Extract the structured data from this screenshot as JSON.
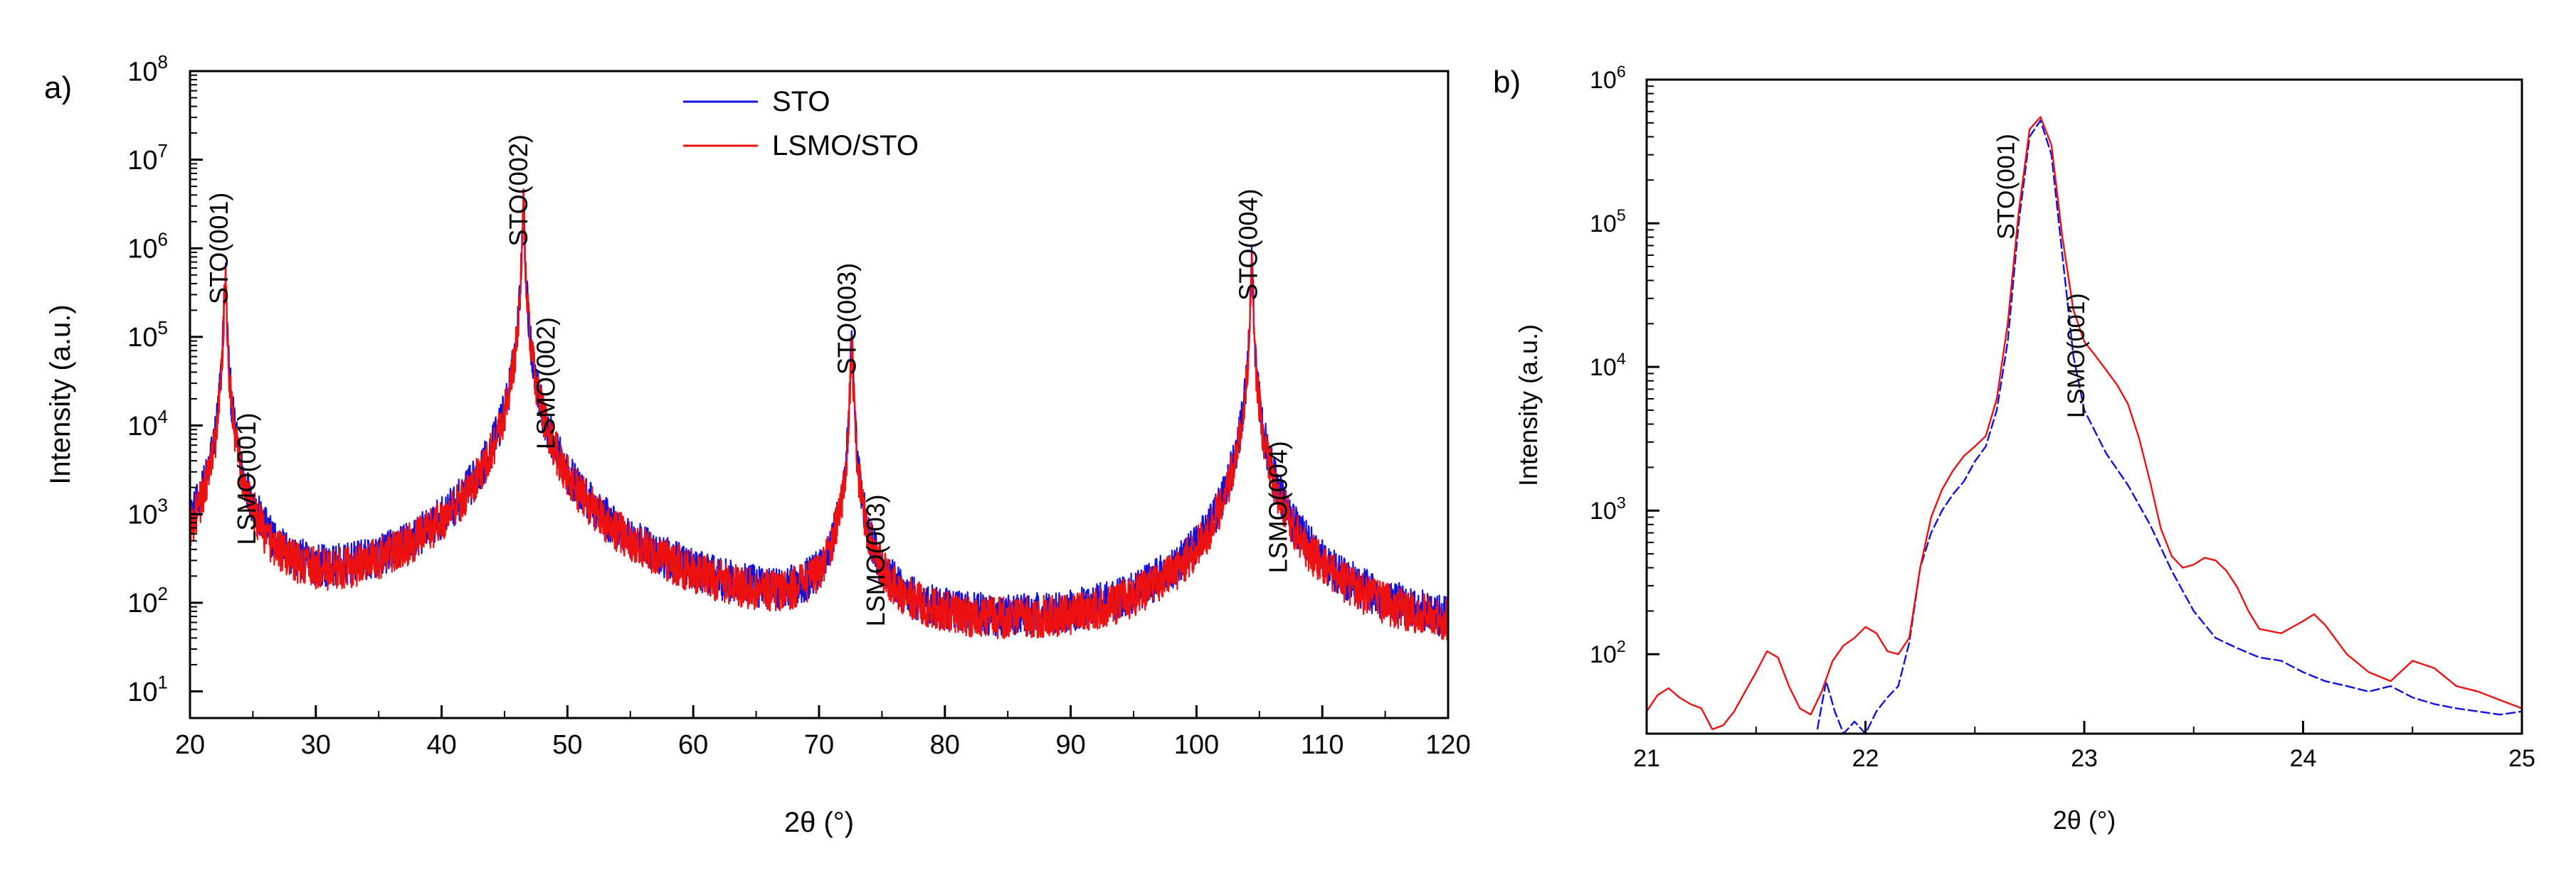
{
  "chart_data": [
    {
      "type": "line",
      "panel_label": "a)",
      "title": "",
      "xlabel": "2θ (°)",
      "ylabel": "Intensity (a.u.)",
      "xlim": [
        20,
        120
      ],
      "ylim": [
        5,
        100000000
      ],
      "yscale": "log",
      "grid": false,
      "legend_position": "top-center",
      "x_ticks": [
        20,
        30,
        40,
        50,
        60,
        70,
        80,
        90,
        100,
        110,
        120
      ],
      "x_tick_labels": [
        "20",
        "30",
        "40",
        "50",
        "60",
        "70",
        "80",
        "90",
        "100",
        "110",
        "120"
      ],
      "y_ticks": [
        10,
        100,
        1000,
        10000,
        100000,
        1000000,
        10000000,
        100000000
      ],
      "y_tick_labels": [
        {
          "base": "10",
          "exp": "1"
        },
        {
          "base": "10",
          "exp": "2"
        },
        {
          "base": "10",
          "exp": "3"
        },
        {
          "base": "10",
          "exp": "4"
        },
        {
          "base": "10",
          "exp": "5"
        },
        {
          "base": "10",
          "exp": "6"
        },
        {
          "base": "10",
          "exp": "7"
        },
        {
          "base": "10",
          "exp": "8"
        }
      ],
      "baseline": 16,
      "peaks": [
        {
          "center": 22.8,
          "sto_height": 500000,
          "lsmo_height": 420000
        },
        {
          "center": 46.5,
          "sto_height": 3000000,
          "lsmo_height": 2800000
        },
        {
          "center": 72.6,
          "sto_height": 90000,
          "lsmo_height": 85000
        },
        {
          "center": 104.4,
          "sto_height": 700000,
          "lsmo_height": 600000
        }
      ],
      "series": [
        {
          "name": "STO",
          "color": "#1010e0"
        },
        {
          "name": "LSMO/STO",
          "color": "#ee1111"
        }
      ],
      "annotations": [
        {
          "text": "STO(001)",
          "x": 23.0,
          "y": 1000000
        },
        {
          "text": "LSMO(001)",
          "x": 25.2,
          "y": 2500
        },
        {
          "text": "STO(002)",
          "x": 46.8,
          "y": 4500000
        },
        {
          "text": "LSMO(002)",
          "x": 49.0,
          "y": 30000
        },
        {
          "text": "STO(003)",
          "x": 72.9,
          "y": 160000
        },
        {
          "text": "LSMO(003)",
          "x": 75.2,
          "y": 300
        },
        {
          "text": "STO(004)",
          "x": 104.8,
          "y": 1100000
        },
        {
          "text": "LSMO(004)",
          "x": 107.2,
          "y": 1200
        }
      ]
    },
    {
      "type": "line",
      "panel_label": "b)",
      "title": "",
      "xlabel": "2θ (°)",
      "ylabel": "Intensity (a.u.)",
      "xlim": [
        21,
        25
      ],
      "ylim": [
        28,
        1000000
      ],
      "yscale": "log",
      "grid": false,
      "x_ticks": [
        21,
        22,
        23,
        24,
        25
      ],
      "x_tick_labels": [
        "21",
        "22",
        "23",
        "24",
        "25"
      ],
      "y_ticks": [
        100,
        1000,
        10000,
        100000,
        1000000
      ],
      "y_tick_labels": [
        {
          "base": "10",
          "exp": "2"
        },
        {
          "base": "10",
          "exp": "3"
        },
        {
          "base": "10",
          "exp": "4"
        },
        {
          "base": "10",
          "exp": "5"
        },
        {
          "base": "10",
          "exp": "6"
        }
      ],
      "series": [
        {
          "name": "STO",
          "color": "#1010e0",
          "x": [
            21.78,
            21.82,
            21.86,
            21.9,
            21.95,
            22.0,
            22.05,
            22.1,
            22.15,
            22.2,
            22.25,
            22.3,
            22.35,
            22.4,
            22.45,
            22.5,
            22.55,
            22.6,
            22.65,
            22.7,
            22.75,
            22.8,
            22.85,
            22.9,
            22.95,
            23.0,
            23.1,
            23.2,
            23.3,
            23.4,
            23.5,
            23.6,
            23.7,
            23.8,
            23.9,
            24.0,
            24.1,
            24.2,
            24.3,
            24.4,
            24.5,
            24.6,
            24.7,
            24.8,
            24.9,
            25.0
          ],
          "y": [
            30,
            65,
            40,
            28,
            34,
            26,
            40,
            50,
            60,
            120,
            400,
            700,
            1000,
            1300,
            1600,
            2200,
            2800,
            5000,
            15000,
            100000,
            400000,
            520000,
            300000,
            60000,
            12000,
            5000,
            2500,
            1500,
            800,
            380,
            200,
            130,
            110,
            95,
            90,
            75,
            65,
            60,
            55,
            60,
            50,
            45,
            42,
            40,
            38,
            40
          ]
        },
        {
          "name": "LSMO/STO",
          "color": "#ee1111",
          "x": [
            21.0,
            21.05,
            21.1,
            21.15,
            21.2,
            21.25,
            21.3,
            21.35,
            21.4,
            21.45,
            21.5,
            21.55,
            21.6,
            21.65,
            21.7,
            21.75,
            21.8,
            21.85,
            21.9,
            21.95,
            22.0,
            22.05,
            22.1,
            22.15,
            22.2,
            22.25,
            22.3,
            22.35,
            22.4,
            22.45,
            22.5,
            22.55,
            22.6,
            22.65,
            22.7,
            22.75,
            22.8,
            22.85,
            22.9,
            22.95,
            23.0,
            23.05,
            23.1,
            23.15,
            23.2,
            23.25,
            23.3,
            23.35,
            23.4,
            23.45,
            23.5,
            23.55,
            23.6,
            23.65,
            23.7,
            23.75,
            23.8,
            23.9,
            24.0,
            24.05,
            24.1,
            24.2,
            24.3,
            24.4,
            24.5,
            24.6,
            24.7,
            24.8,
            24.9,
            25.0
          ],
          "y": [
            40,
            52,
            58,
            50,
            45,
            42,
            30,
            32,
            40,
            55,
            75,
            105,
            95,
            60,
            42,
            38,
            55,
            90,
            115,
            130,
            155,
            140,
            105,
            100,
            130,
            400,
            900,
            1400,
            1900,
            2400,
            2800,
            3300,
            6000,
            20000,
            120000,
            450000,
            550000,
            350000,
            80000,
            25000,
            15000,
            12000,
            9500,
            7500,
            5500,
            3200,
            1600,
            750,
            480,
            400,
            420,
            470,
            450,
            380,
            290,
            200,
            150,
            140,
            170,
            190,
            160,
            100,
            75,
            65,
            90,
            80,
            60,
            55,
            48,
            42
          ]
        }
      ],
      "annotations": [
        {
          "text": "STO(001)",
          "x": 22.68,
          "y": 180000
        },
        {
          "text": "LSMO(001)",
          "x": 23.0,
          "y": 12000
        }
      ]
    }
  ]
}
